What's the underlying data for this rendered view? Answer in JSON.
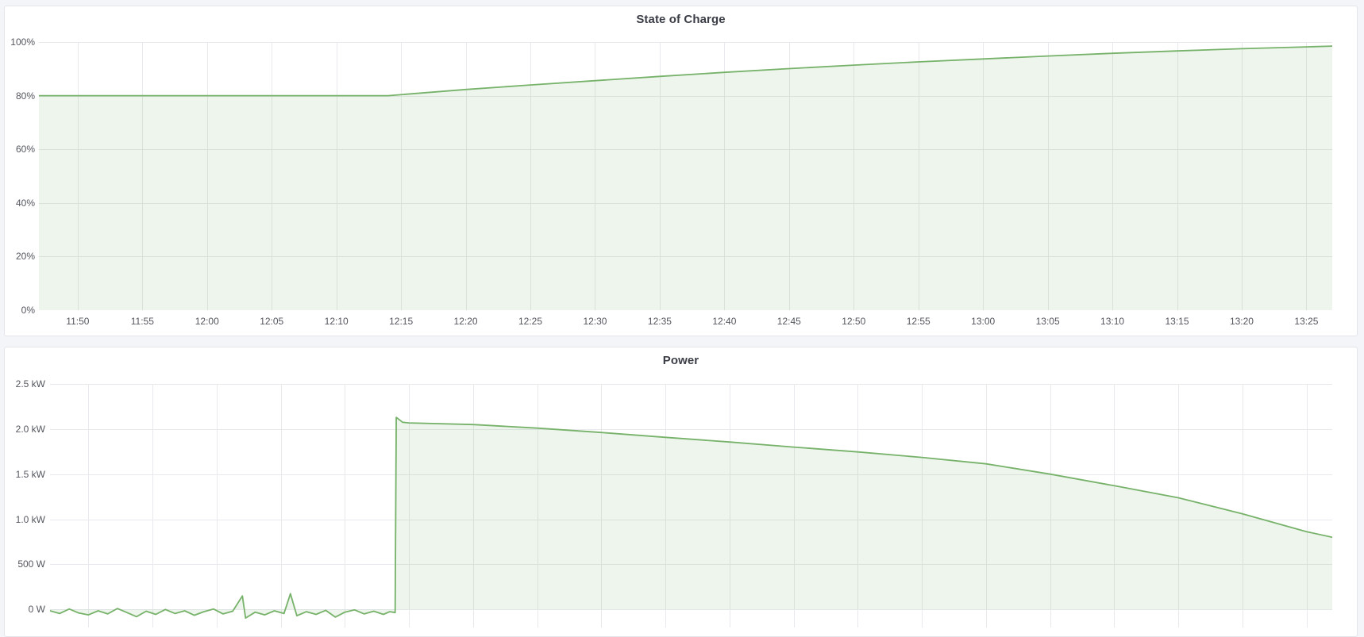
{
  "page": {
    "background": "#f4f5f9",
    "panel_background": "#ffffff",
    "panel_border": "#e3e5ea",
    "grid_color": "#e8e9ec",
    "axis_text_color": "#54565e",
    "title_color": "#3a3d46",
    "accent_line_color": "#77b26a",
    "accent_fill_color": "rgba(119,178,106,0.13)"
  },
  "panels": [
    {
      "title": "State of Charge"
    },
    {
      "title": "Power"
    }
  ],
  "chart_data": [
    {
      "type": "area",
      "title": "State of Charge",
      "x_domain": [
        "11:47",
        "13:27"
      ],
      "y_domain": [
        0,
        100
      ],
      "grid": true,
      "legend": "none",
      "x_ticks": [
        "11:50",
        "11:55",
        "12:00",
        "12:05",
        "12:10",
        "12:15",
        "12:20",
        "12:25",
        "12:30",
        "12:35",
        "12:40",
        "12:45",
        "12:50",
        "12:55",
        "13:00",
        "13:05",
        "13:10",
        "13:15",
        "13:20",
        "13:25"
      ],
      "y_ticks": [
        {
          "v": 0,
          "label": "0%"
        },
        {
          "v": 20,
          "label": "20%"
        },
        {
          "v": 40,
          "label": "40%"
        },
        {
          "v": 60,
          "label": "60%"
        },
        {
          "v": 80,
          "label": "80%"
        },
        {
          "v": 100,
          "label": "100%"
        }
      ],
      "series": [
        {
          "name": "State of Charge (%)",
          "color": "#77b26a",
          "fill": "rgba(119,178,106,0.13)",
          "points": [
            [
              "11:47:00",
              80.0
            ],
            [
              "12:14:00",
              80.0
            ],
            [
              "12:20:00",
              82.3
            ],
            [
              "12:25:00",
              84.0
            ],
            [
              "12:30:00",
              85.6
            ],
            [
              "12:35:00",
              87.2
            ],
            [
              "12:40:00",
              88.7
            ],
            [
              "12:45:00",
              90.1
            ],
            [
              "12:50:00",
              91.4
            ],
            [
              "12:55:00",
              92.6
            ],
            [
              "13:00:00",
              93.7
            ],
            [
              "13:05:00",
              94.8
            ],
            [
              "13:10:00",
              95.8
            ],
            [
              "13:15:00",
              96.7
            ],
            [
              "13:20:00",
              97.5
            ],
            [
              "13:25:00",
              98.2
            ],
            [
              "13:27:00",
              98.5
            ]
          ]
        }
      ]
    },
    {
      "type": "area",
      "title": "Power",
      "x_domain": [
        "11:47",
        "13:27"
      ],
      "y_domain": [
        -200,
        2500
      ],
      "grid": true,
      "legend": "none",
      "x_ticks": [
        "11:50",
        "11:55",
        "12:00",
        "12:05",
        "12:10",
        "12:15",
        "12:20",
        "12:25",
        "12:30",
        "12:35",
        "12:40",
        "12:45",
        "12:50",
        "12:55",
        "13:00",
        "13:05",
        "13:10",
        "13:15",
        "13:20",
        "13:25"
      ],
      "x_tick_labels_visible": false,
      "y_ticks": [
        {
          "v": 0,
          "label": "0 W"
        },
        {
          "v": 500,
          "label": "500 W"
        },
        {
          "v": 1000,
          "label": "1.0 kW"
        },
        {
          "v": 1500,
          "label": "1.5 kW"
        },
        {
          "v": 2000,
          "label": "2.0 kW"
        },
        {
          "v": 2500,
          "label": "2.5 kW"
        }
      ],
      "series": [
        {
          "name": "Power (W)",
          "color": "#77b26a",
          "fill": "rgba(119,178,106,0.13)",
          "points": [
            [
              "11:47:00",
              -15
            ],
            [
              "11:47:45",
              -45
            ],
            [
              "11:48:30",
              5
            ],
            [
              "11:49:15",
              -40
            ],
            [
              "11:50:00",
              -60
            ],
            [
              "11:50:45",
              -15
            ],
            [
              "11:51:30",
              -50
            ],
            [
              "11:52:15",
              10
            ],
            [
              "11:53:00",
              -35
            ],
            [
              "11:53:45",
              -80
            ],
            [
              "11:54:30",
              -20
            ],
            [
              "11:55:15",
              -55
            ],
            [
              "11:56:00",
              0
            ],
            [
              "11:56:45",
              -45
            ],
            [
              "11:57:30",
              -15
            ],
            [
              "11:58:15",
              -65
            ],
            [
              "11:59:00",
              -25
            ],
            [
              "11:59:45",
              5
            ],
            [
              "12:00:30",
              -50
            ],
            [
              "12:01:15",
              -20
            ],
            [
              "12:02:00",
              150
            ],
            [
              "12:02:15",
              -95
            ],
            [
              "12:03:00",
              -30
            ],
            [
              "12:03:45",
              -60
            ],
            [
              "12:04:30",
              -15
            ],
            [
              "12:05:15",
              -45
            ],
            [
              "12:05:45",
              175
            ],
            [
              "12:06:15",
              -70
            ],
            [
              "12:07:00",
              -25
            ],
            [
              "12:07:45",
              -55
            ],
            [
              "12:08:30",
              -10
            ],
            [
              "12:09:15",
              -85
            ],
            [
              "12:10:00",
              -30
            ],
            [
              "12:10:45",
              -5
            ],
            [
              "12:11:30",
              -50
            ],
            [
              "12:12:15",
              -20
            ],
            [
              "12:13:00",
              -55
            ],
            [
              "12:13:30",
              -25
            ],
            [
              "12:13:55",
              -35
            ],
            [
              "12:14:00",
              2130
            ],
            [
              "12:14:30",
              2075
            ],
            [
              "12:15:00",
              2068
            ],
            [
              "12:20:00",
              2050
            ],
            [
              "12:25:00",
              2010
            ],
            [
              "12:30:00",
              1962
            ],
            [
              "12:35:00",
              1908
            ],
            [
              "12:40:00",
              1856
            ],
            [
              "12:45:00",
              1800
            ],
            [
              "12:50:00",
              1746
            ],
            [
              "12:55:00",
              1686
            ],
            [
              "13:00:00",
              1614
            ],
            [
              "13:05:00",
              1500
            ],
            [
              "13:10:00",
              1372
            ],
            [
              "13:15:00",
              1238
            ],
            [
              "13:20:00",
              1060
            ],
            [
              "13:25:00",
              862
            ],
            [
              "13:27:00",
              800
            ]
          ]
        }
      ]
    }
  ]
}
